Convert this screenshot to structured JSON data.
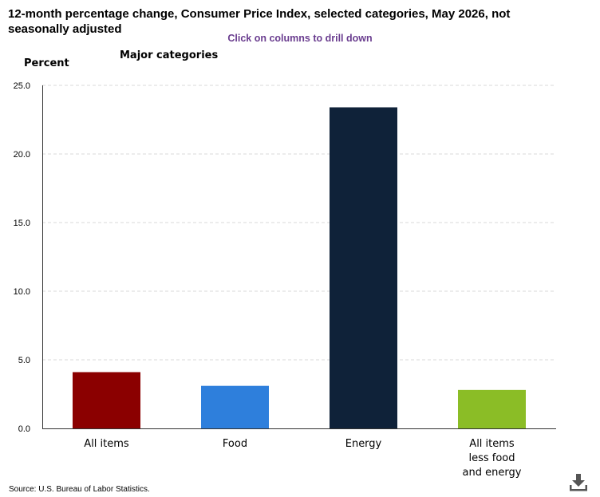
{
  "title": "12-month percentage change, Consumer Price Index, selected categories, May 2026, not seasonally adjusted",
  "hint": "Click on columns to drill down",
  "subtitle": "Major categories",
  "source": "Source: U.S. Bureau of Labor Statistics.",
  "icons": {
    "download": "download-icon"
  },
  "chart_data": {
    "type": "bar",
    "title": "12-month percentage change, Consumer Price Index, selected categories, May 2026, not seasonally adjusted",
    "ylabel": "Percent",
    "xlabel": "",
    "ylim": [
      0,
      25
    ],
    "yticks": [
      "0.0",
      "5.0",
      "10.0",
      "15.0",
      "20.0",
      "25.0"
    ],
    "grid": true,
    "categories": [
      {
        "lines": [
          "All items"
        ],
        "value": 4.1,
        "color": "#8b0000"
      },
      {
        "lines": [
          "Food"
        ],
        "value": 3.1,
        "color": "#2e7fdc"
      },
      {
        "lines": [
          "Energy"
        ],
        "value": 23.4,
        "color": "#0f2239"
      },
      {
        "lines": [
          "All items",
          "less food",
          "and energy"
        ],
        "value": 2.8,
        "color": "#8bbd26"
      }
    ]
  }
}
